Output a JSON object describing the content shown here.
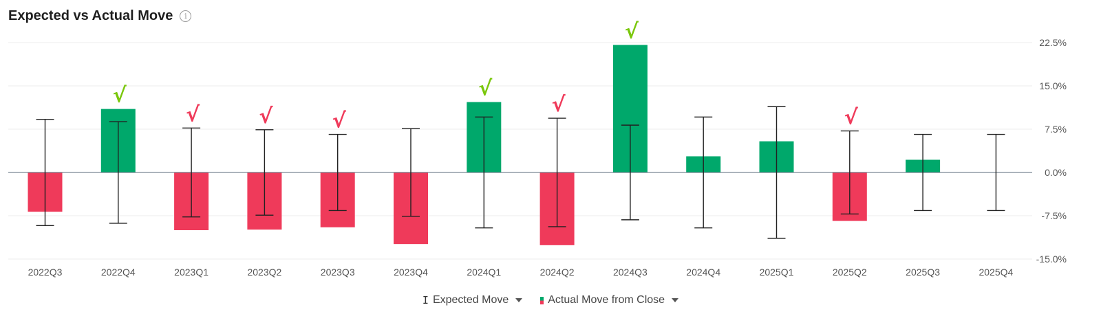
{
  "header": {
    "title": "Expected vs Actual Move",
    "info_icon": "info-icon"
  },
  "legend": {
    "expected_label": "Expected Move",
    "actual_label": "Actual Move from Close",
    "expected_icon": "I"
  },
  "colors": {
    "positive": "#00a86b",
    "negative": "#ef3a5a",
    "check_good": "#7ac70c",
    "check_bad": "#ef3a5a"
  },
  "chart_data": {
    "type": "bar",
    "categories": [
      "2022Q3",
      "2022Q4",
      "2023Q1",
      "2023Q2",
      "2023Q3",
      "2023Q4",
      "2024Q1",
      "2024Q2",
      "2024Q3",
      "2024Q4",
      "2025Q1",
      "2025Q2",
      "2025Q3",
      "2025Q4"
    ],
    "series": [
      {
        "name": "Actual Move from Close",
        "values": [
          -6.8,
          11.0,
          -10.0,
          -9.9,
          -9.5,
          -12.4,
          12.2,
          -12.6,
          22.1,
          2.8,
          5.4,
          -8.4,
          2.2,
          null
        ]
      },
      {
        "name": "Expected Move",
        "values": [
          9.2,
          8.8,
          7.7,
          7.4,
          6.6,
          7.6,
          9.6,
          9.4,
          8.2,
          9.6,
          11.4,
          7.2,
          6.6,
          6.6
        ]
      }
    ],
    "check_marks": [
      "",
      "good",
      "bad",
      "bad",
      "bad",
      "",
      "good",
      "bad",
      "good",
      "",
      "",
      "bad",
      "",
      ""
    ],
    "check_symbol": "√",
    "yticks": [
      "22.5%",
      "15.0%",
      "7.5%",
      "0.0%",
      "-7.5%",
      "-15.0%"
    ],
    "ytick_values": [
      22.5,
      15.0,
      7.5,
      0.0,
      -7.5,
      -15.0
    ],
    "ylim": [
      -15.0,
      22.5
    ],
    "grid": true,
    "legend_position": "bottom"
  }
}
